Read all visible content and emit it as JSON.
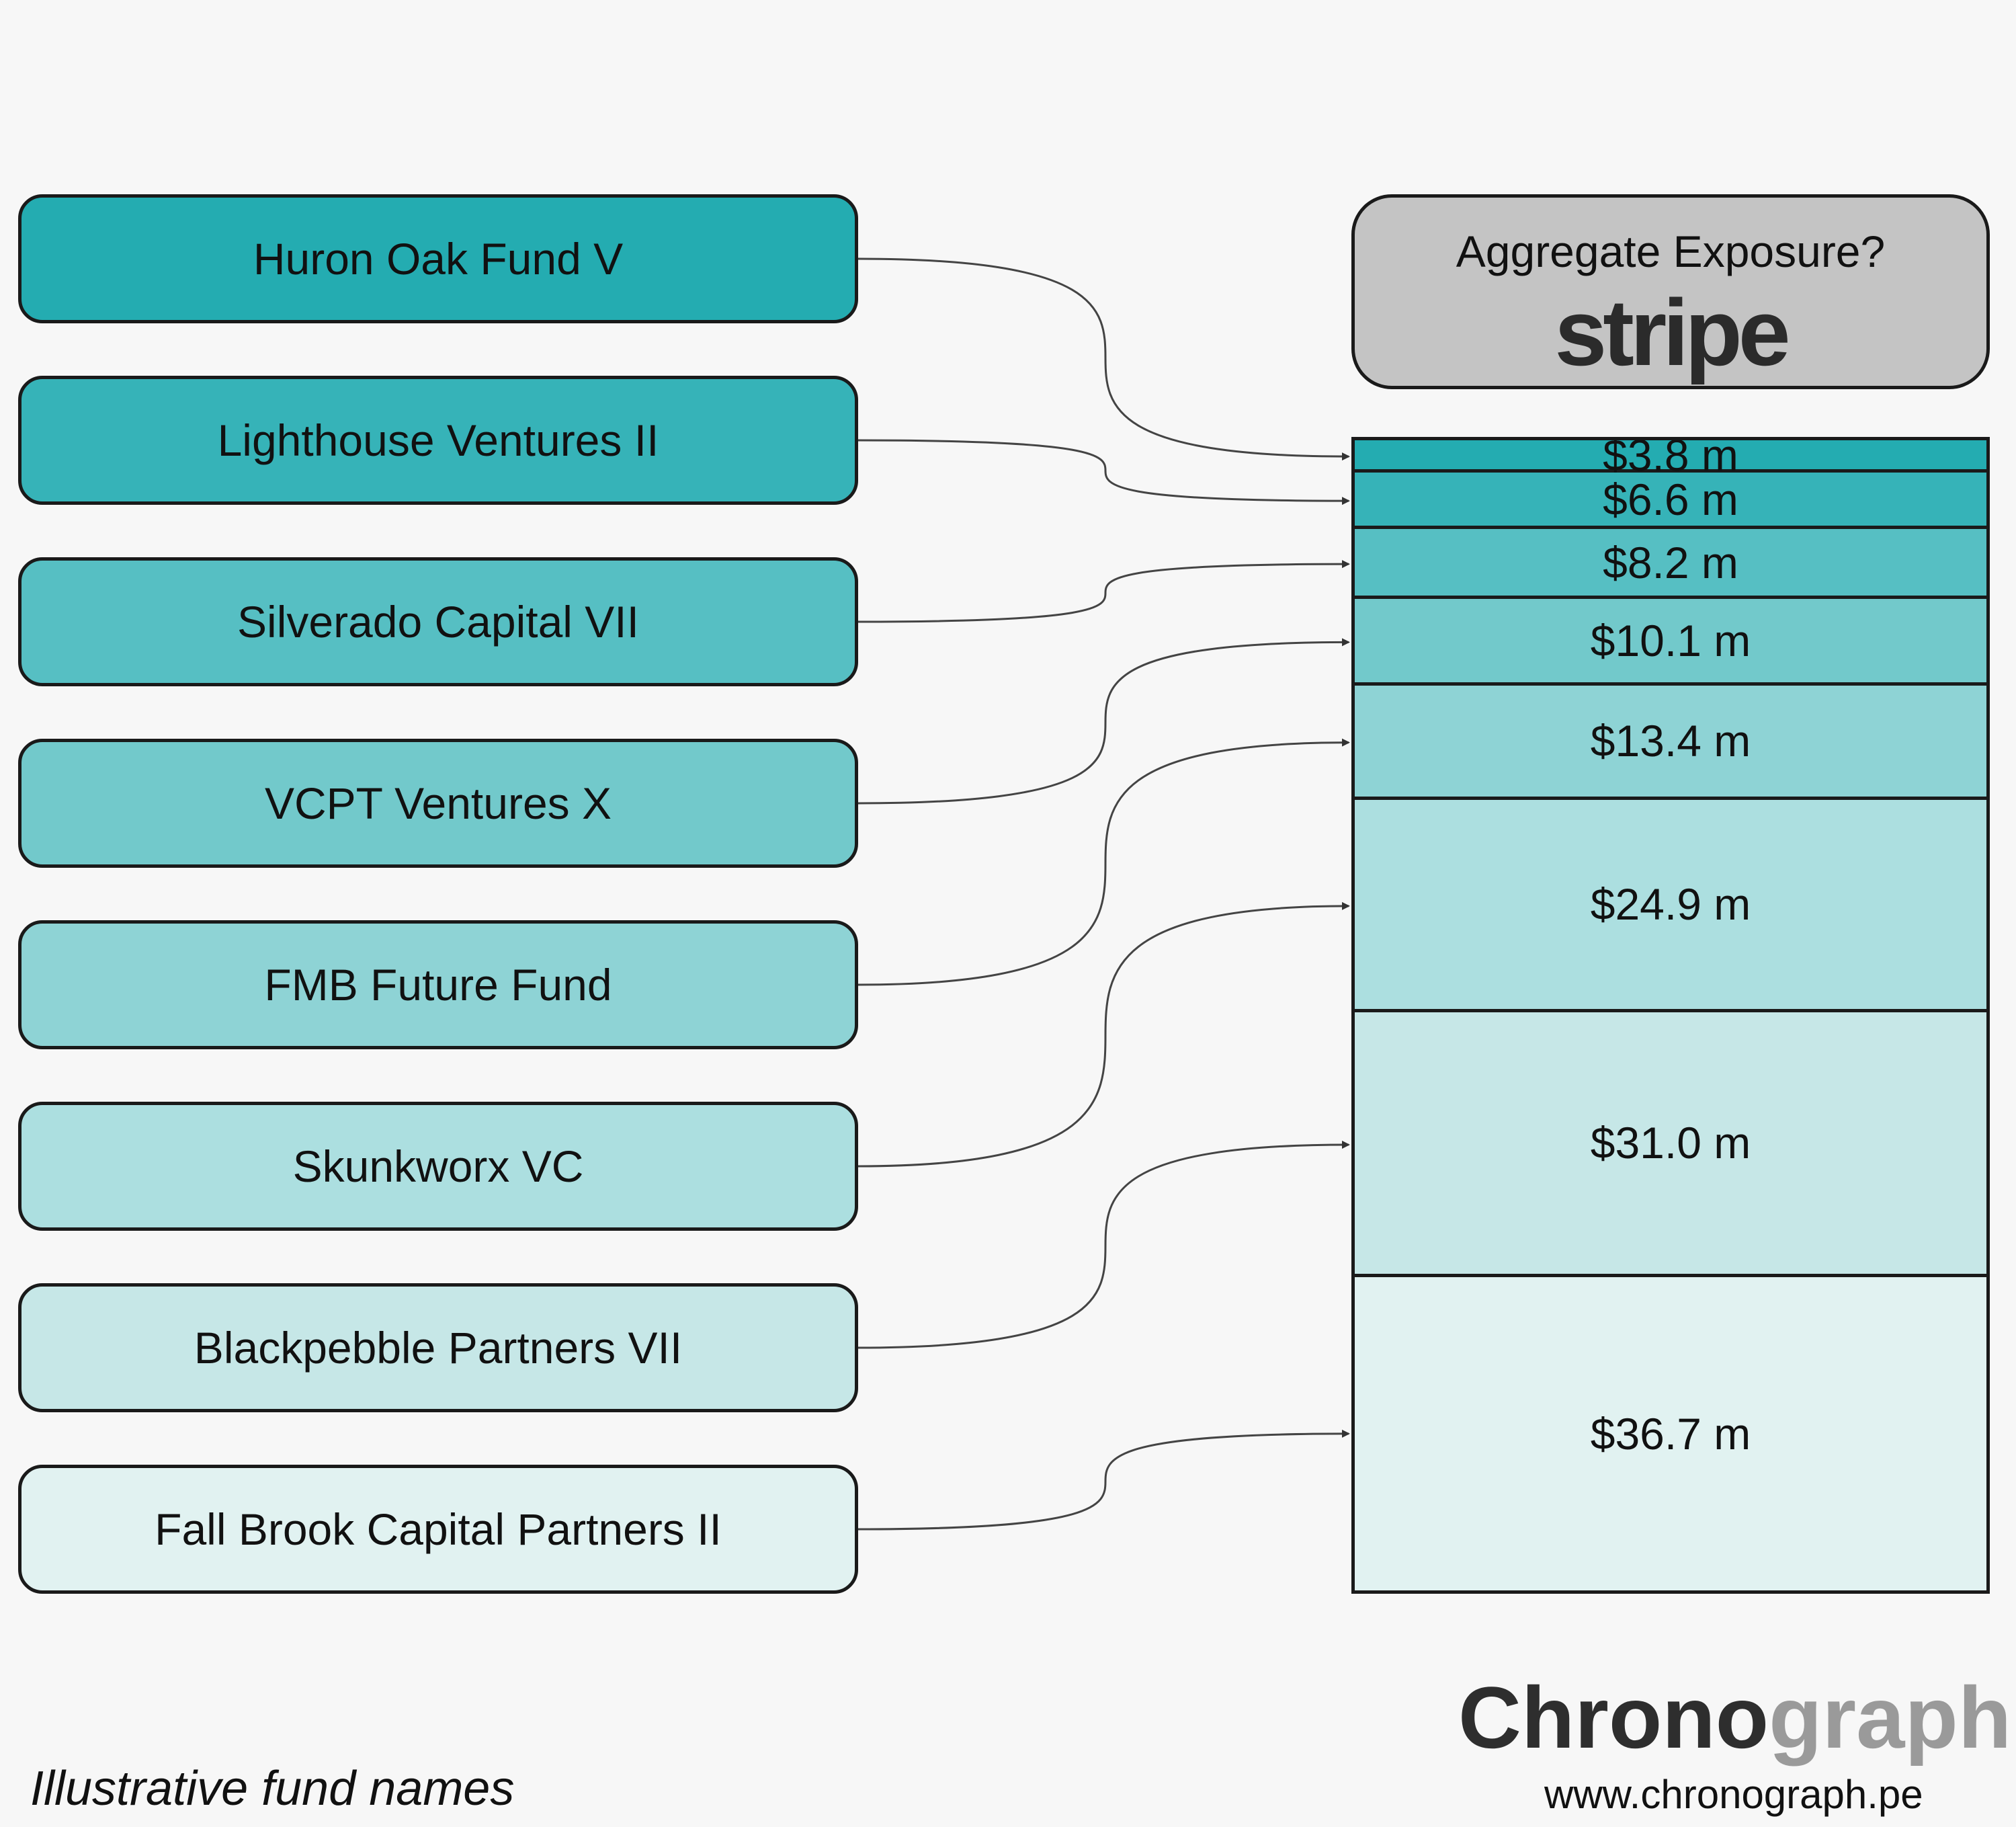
{
  "header": {
    "title": "Aggregate Exposure?",
    "logo_text": "stripe"
  },
  "funds": [
    {
      "name": "Huron Oak Fund V",
      "exposure": 3.8,
      "label": "$3.8 m",
      "color": "#24acb1"
    },
    {
      "name": "Lighthouse Ventures II",
      "exposure": 6.6,
      "label": "$6.6 m",
      "color": "#36b3b8"
    },
    {
      "name": "Silverado Capital VII",
      "exposure": 8.2,
      "label": "$8.2 m",
      "color": "#56bfc3"
    },
    {
      "name": "VCPT Ventures X",
      "exposure": 10.1,
      "label": "$10.1 m",
      "color": "#72c9cb"
    },
    {
      "name": "FMB Future Fund",
      "exposure": 13.4,
      "label": "$13.4 m",
      "color": "#8ed3d5"
    },
    {
      "name": "Skunkworx VC",
      "exposure": 24.9,
      "label": "$24.9 m",
      "color": "#acdfe0"
    },
    {
      "name": "Blackpebble Partners VII",
      "exposure": 31.0,
      "label": "$31.0 m",
      "color": "#c6e7e7"
    },
    {
      "name": "Fall Brook Capital Partners II",
      "exposure": 36.7,
      "label": "$36.7 m",
      "color": "#e1f2f1"
    }
  ],
  "footnote": "Illustrative fund names",
  "brand": {
    "name_dark": "Chrono",
    "name_light": "graph",
    "url": "www.chronograph.pe"
  }
}
